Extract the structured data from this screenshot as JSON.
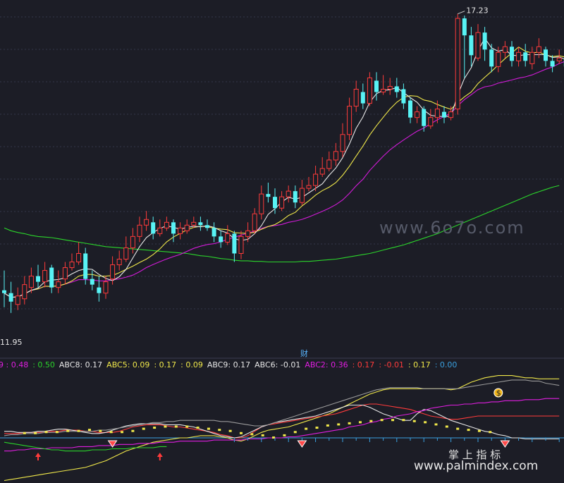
{
  "chart_data": [
    {
      "type": "candlestick",
      "panel": "main",
      "price_ylim": [
        11.4,
        17.4
      ],
      "annotations": {
        "high_label": "17.23",
        "low_label": "11.95"
      },
      "colors": {
        "up": "#ff3b3b",
        "down": "#58f3f5",
        "ma5": "#e8e8e8",
        "ma10": "#f0e84a",
        "ma20": "#d21bd8",
        "ma60": "#2bd62b"
      },
      "candles": [
        [
          12.35,
          12.3,
          12.7,
          12.05
        ],
        [
          12.3,
          12.15,
          12.5,
          11.95
        ],
        [
          12.1,
          12.25,
          12.4,
          12.0
        ],
        [
          12.2,
          12.45,
          12.6,
          12.1
        ],
        [
          12.4,
          12.6,
          12.75,
          12.3
        ],
        [
          12.6,
          12.5,
          12.8,
          12.4
        ],
        [
          12.5,
          12.7,
          12.85,
          12.4
        ],
        [
          12.75,
          12.4,
          12.8,
          12.3
        ],
        [
          12.4,
          12.5,
          12.7,
          12.3
        ],
        [
          12.55,
          12.75,
          12.85,
          12.45
        ],
        [
          12.75,
          12.85,
          13.0,
          12.7
        ],
        [
          12.85,
          13.0,
          13.2,
          12.8
        ],
        [
          13.0,
          12.55,
          13.1,
          12.45
        ],
        [
          12.55,
          12.45,
          12.7,
          12.35
        ],
        [
          12.4,
          12.3,
          12.6,
          12.15
        ],
        [
          12.3,
          12.5,
          12.6,
          12.2
        ],
        [
          12.55,
          12.8,
          12.95,
          12.45
        ],
        [
          12.8,
          12.9,
          13.05,
          12.7
        ],
        [
          12.9,
          13.1,
          13.3,
          12.85
        ],
        [
          13.1,
          13.3,
          13.45,
          13.0
        ],
        [
          13.3,
          13.5,
          13.65,
          13.2
        ],
        [
          13.5,
          13.6,
          13.75,
          13.4
        ],
        [
          13.55,
          13.35,
          13.65,
          13.25
        ],
        [
          13.35,
          13.45,
          13.6,
          13.3
        ],
        [
          13.45,
          13.55,
          13.65,
          13.4
        ],
        [
          13.55,
          13.35,
          13.6,
          13.2
        ],
        [
          13.35,
          13.45,
          13.55,
          13.25
        ],
        [
          13.4,
          13.5,
          13.6,
          13.35
        ],
        [
          13.5,
          13.55,
          13.65,
          13.45
        ],
        [
          13.55,
          13.5,
          13.65,
          13.4
        ],
        [
          13.5,
          13.45,
          13.6,
          13.4
        ],
        [
          13.45,
          13.3,
          13.55,
          13.2
        ],
        [
          13.3,
          13.2,
          13.4,
          13.1
        ],
        [
          13.2,
          13.35,
          13.5,
          13.15
        ],
        [
          13.35,
          13.0,
          13.4,
          12.85
        ],
        [
          13.0,
          13.3,
          13.4,
          12.9
        ],
        [
          13.3,
          13.4,
          13.55,
          13.2
        ],
        [
          13.4,
          13.7,
          13.8,
          13.35
        ],
        [
          13.7,
          14.05,
          14.2,
          13.6
        ],
        [
          14.05,
          14.0,
          14.25,
          13.9
        ],
        [
          14.0,
          13.8,
          14.15,
          13.7
        ],
        [
          13.8,
          14.0,
          14.1,
          13.75
        ],
        [
          14.0,
          14.1,
          14.2,
          13.9
        ],
        [
          14.1,
          13.9,
          14.2,
          13.8
        ],
        [
          13.9,
          14.15,
          14.3,
          13.85
        ],
        [
          14.15,
          14.2,
          14.35,
          14.1
        ],
        [
          14.2,
          14.4,
          14.55,
          14.1
        ],
        [
          14.4,
          14.5,
          14.7,
          14.35
        ],
        [
          14.5,
          14.65,
          14.8,
          14.45
        ],
        [
          14.65,
          14.8,
          14.95,
          14.55
        ],
        [
          14.8,
          15.1,
          15.3,
          14.7
        ],
        [
          15.1,
          15.6,
          15.75,
          15.0
        ],
        [
          15.6,
          15.9,
          16.05,
          15.5
        ],
        [
          15.85,
          15.65,
          16.0,
          15.55
        ],
        [
          15.65,
          16.1,
          16.2,
          15.6
        ],
        [
          16.05,
          15.85,
          16.2,
          15.7
        ],
        [
          15.85,
          15.9,
          16.15,
          15.8
        ],
        [
          15.9,
          15.95,
          16.1,
          15.8
        ],
        [
          15.95,
          15.85,
          16.1,
          15.75
        ],
        [
          15.9,
          15.65,
          16.0,
          15.55
        ],
        [
          15.7,
          15.4,
          15.75,
          15.3
        ],
        [
          15.4,
          15.5,
          15.6,
          15.3
        ],
        [
          15.55,
          15.25,
          15.6,
          15.15
        ],
        [
          15.25,
          15.4,
          15.55,
          15.2
        ],
        [
          15.4,
          15.55,
          15.7,
          15.3
        ],
        [
          15.5,
          15.4,
          15.6,
          15.3
        ],
        [
          15.4,
          15.5,
          15.6,
          15.35
        ],
        [
          15.55,
          17.15,
          17.23,
          15.45
        ],
        [
          17.15,
          16.85,
          17.2,
          16.1
        ],
        [
          16.85,
          16.5,
          17.0,
          16.3
        ],
        [
          16.45,
          16.9,
          17.05,
          16.4
        ],
        [
          16.9,
          16.6,
          17.0,
          16.4
        ],
        [
          16.6,
          16.3,
          16.7,
          16.2
        ],
        [
          16.3,
          16.55,
          16.65,
          16.2
        ],
        [
          16.55,
          16.65,
          16.75,
          16.45
        ],
        [
          16.65,
          16.4,
          16.75,
          16.3
        ],
        [
          16.4,
          16.55,
          16.65,
          16.3
        ],
        [
          16.55,
          16.4,
          16.7,
          16.3
        ],
        [
          16.35,
          16.55,
          16.65,
          16.25
        ],
        [
          16.55,
          16.65,
          16.8,
          16.45
        ],
        [
          16.6,
          16.4,
          16.65,
          16.3
        ],
        [
          16.4,
          16.3,
          16.5,
          16.2
        ],
        [
          16.4,
          16.45,
          16.6,
          16.35
        ],
        [
          16.45,
          16.3,
          16.5,
          16.1
        ]
      ],
      "ma60_series": [
        13.45,
        13.4,
        13.37,
        13.35,
        13.32,
        13.3,
        13.29,
        13.28,
        13.26,
        13.24,
        13.22,
        13.2,
        13.18,
        13.16,
        13.14,
        13.12,
        13.11,
        13.1,
        13.09,
        13.08,
        13.07,
        13.06,
        13.05,
        13.04,
        13.03,
        13.02,
        13.01,
        13.0,
        12.98,
        12.96,
        12.95,
        12.93,
        12.91,
        12.9,
        12.88,
        12.87,
        12.87,
        12.86,
        12.86,
        12.85,
        12.85,
        12.85,
        12.85,
        12.85,
        12.86,
        12.86,
        12.87,
        12.88,
        12.89,
        12.9,
        12.92,
        12.94,
        12.96,
        12.98,
        13.0,
        13.03,
        13.06,
        13.09,
        13.12,
        13.15,
        13.19,
        13.23,
        13.27,
        13.31,
        13.35,
        13.4,
        13.45,
        13.5,
        13.55,
        13.6,
        13.65,
        13.7,
        13.75,
        13.8,
        13.85,
        13.9,
        13.95,
        14.0,
        14.05,
        14.09,
        14.13,
        14.17,
        14.2
      ],
      "labels": {
        "cai_tag": "财"
      }
    },
    {
      "type": "line",
      "panel": "indicator",
      "legend": [
        {
          "text": "9 : 0.48",
          "color": "#e01ee0"
        },
        {
          "text": ": 0.50",
          "color": "#2ad32a"
        },
        {
          "text": "ABC8: 0.17",
          "color": "#e6e6e6"
        },
        {
          "text": "ABC5: 0.09",
          "color": "#f0e84a"
        },
        {
          "text": ": 0.17",
          "color": "#f0e84a"
        },
        {
          "text": ": 0.09",
          "color": "#f0e84a"
        },
        {
          "text": "ABC9: 0.17",
          "color": "#e6e6e6"
        },
        {
          "text": "ABC6: -0.01",
          "color": "#e6e6e6"
        },
        {
          "text": "ABC2: 0.36",
          "color": "#e01ee0"
        },
        {
          "text": ": 0.17",
          "color": "#ff3b3b"
        },
        {
          "text": ": -0.01",
          "color": "#ff3b3b"
        },
        {
          "text": ": 0.17",
          "color": "#f0e84a"
        },
        {
          "text": ": 0.00",
          "color": "#3aa0e0"
        }
      ],
      "ylim": [
        -0.4,
        0.6
      ],
      "series": [
        {
          "color": "#f0e84a",
          "values": [
            -0.39,
            -0.38,
            -0.37,
            -0.36,
            -0.35,
            -0.34,
            -0.33,
            -0.32,
            -0.31,
            -0.3,
            -0.29,
            -0.28,
            -0.27,
            -0.25,
            -0.23,
            -0.21,
            -0.18,
            -0.15,
            -0.12,
            -0.1,
            -0.08,
            -0.06,
            -0.04,
            -0.03,
            -0.02,
            -0.01,
            0.0,
            0.0,
            0.01,
            0.02,
            0.02,
            0.02,
            0.01,
            0.0,
            -0.02,
            -0.03,
            -0.01,
            0.02,
            0.05,
            0.07,
            0.08,
            0.09,
            0.1,
            0.12,
            0.14,
            0.16,
            0.18,
            0.2,
            0.22,
            0.25,
            0.28,
            0.31,
            0.34,
            0.37,
            0.4,
            0.42,
            0.44,
            0.45,
            0.45,
            0.45,
            0.45,
            0.45,
            0.45,
            0.45,
            0.45,
            0.45,
            0.44,
            0.45,
            0.48,
            0.51,
            0.53,
            0.55,
            0.56,
            0.57,
            0.57,
            0.57,
            0.56,
            0.55,
            0.55,
            0.54,
            0.54,
            0.54,
            0.54
          ]
        },
        {
          "color": "#ff3b3b",
          "values": [
            0.04,
            0.04,
            0.04,
            0.05,
            0.05,
            0.05,
            0.05,
            0.06,
            0.06,
            0.07,
            0.07,
            0.07,
            0.06,
            0.06,
            0.05,
            0.05,
            0.05,
            0.06,
            0.08,
            0.1,
            0.11,
            0.12,
            0.12,
            0.12,
            0.11,
            0.1,
            0.1,
            0.09,
            0.08,
            0.07,
            0.06,
            0.05,
            0.03,
            0.02,
            0.0,
            0.0,
            0.02,
            0.06,
            0.1,
            0.12,
            0.13,
            0.14,
            0.15,
            0.16,
            0.17,
            0.18,
            0.19,
            0.2,
            0.21,
            0.22,
            0.24,
            0.26,
            0.28,
            0.3,
            0.31,
            0.31,
            0.3,
            0.29,
            0.28,
            0.27,
            0.26,
            0.24,
            0.22,
            0.2,
            0.19,
            0.18,
            0.17,
            0.17,
            0.18,
            0.19,
            0.2,
            0.2,
            0.2,
            0.2,
            0.2,
            0.2,
            0.2,
            0.2,
            0.2,
            0.2,
            0.2,
            0.2,
            0.2
          ]
        },
        {
          "color": "#e6e6e6",
          "values": [
            0.06,
            0.06,
            0.05,
            0.05,
            0.05,
            0.06,
            0.06,
            0.07,
            0.08,
            0.08,
            0.07,
            0.06,
            0.05,
            0.04,
            0.04,
            0.05,
            0.07,
            0.09,
            0.11,
            0.12,
            0.13,
            0.13,
            0.13,
            0.13,
            0.12,
            0.12,
            0.12,
            0.11,
            0.1,
            0.08,
            0.06,
            0.04,
            0.02,
            0.01,
            0.0,
            0.01,
            0.04,
            0.07,
            0.1,
            0.12,
            0.14,
            0.15,
            0.16,
            0.17,
            0.18,
            0.19,
            0.2,
            0.22,
            0.24,
            0.26,
            0.28,
            0.3,
            0.3,
            0.3,
            0.28,
            0.25,
            0.22,
            0.2,
            0.18,
            0.16,
            0.16,
            0.22,
            0.26,
            0.25,
            0.22,
            0.19,
            0.16,
            0.14,
            0.12,
            0.1,
            0.08,
            0.06,
            0.05,
            0.03,
            0.02,
            0.0,
            0.0,
            -0.01,
            -0.01,
            -0.01,
            -0.01,
            -0.01,
            -0.01
          ]
        },
        {
          "color": "#e01ee0",
          "values": [
            -0.12,
            -0.12,
            -0.11,
            -0.11,
            -0.1,
            -0.1,
            -0.1,
            -0.09,
            -0.09,
            -0.09,
            -0.09,
            -0.08,
            -0.08,
            -0.08,
            -0.07,
            -0.07,
            -0.07,
            -0.06,
            -0.06,
            -0.06,
            -0.05,
            -0.05,
            -0.05,
            -0.04,
            -0.04,
            -0.04,
            -0.03,
            -0.03,
            -0.03,
            -0.03,
            -0.03,
            -0.02,
            -0.02,
            -0.02,
            -0.02,
            -0.02,
            -0.01,
            -0.01,
            -0.01,
            0.0,
            0.0,
            0.0,
            0.01,
            0.01,
            0.02,
            0.03,
            0.04,
            0.05,
            0.06,
            0.07,
            0.08,
            0.1,
            0.11,
            0.12,
            0.14,
            0.15,
            0.17,
            0.18,
            0.2,
            0.21,
            0.22,
            0.24,
            0.25,
            0.27,
            0.28,
            0.29,
            0.3,
            0.3,
            0.31,
            0.31,
            0.32,
            0.32,
            0.33,
            0.33,
            0.34,
            0.34,
            0.34,
            0.35,
            0.35,
            0.35,
            0.36,
            0.36,
            0.36
          ]
        },
        {
          "color": "#2ad32a",
          "values": [
            -0.04,
            -0.05,
            -0.06,
            -0.07,
            -0.08,
            -0.09,
            -0.1,
            -0.11,
            -0.11,
            -0.12,
            -0.12,
            -0.12,
            -0.12,
            -0.11,
            -0.11,
            -0.11,
            -0.1,
            -0.1,
            -0.1,
            -0.09,
            -0.09,
            -0.09,
            -0.09,
            -0.08,
            -0.08
          ]
        },
        {
          "color": "#9a9a9a",
          "values": [
            0.02,
            0.03,
            0.03,
            0.04,
            0.04,
            0.04,
            0.05,
            0.05,
            0.05,
            0.06,
            0.06,
            0.06,
            0.06,
            0.06,
            0.07,
            0.07,
            0.08,
            0.09,
            0.1,
            0.11,
            0.12,
            0.13,
            0.14,
            0.14,
            0.15,
            0.15,
            0.16,
            0.16,
            0.16,
            0.16,
            0.16,
            0.16,
            0.15,
            0.15,
            0.14,
            0.13,
            0.12,
            0.11,
            0.11,
            0.12,
            0.14,
            0.16,
            0.18,
            0.2,
            0.22,
            0.24,
            0.26,
            0.28,
            0.3,
            0.32,
            0.34,
            0.36,
            0.38,
            0.4,
            0.42,
            0.44,
            0.45,
            0.46,
            0.46,
            0.46,
            0.46,
            0.46,
            0.45,
            0.45,
            0.45,
            0.45,
            0.45,
            0.45,
            0.46,
            0.47,
            0.48,
            0.49,
            0.5,
            0.51,
            0.52,
            0.53,
            0.53,
            0.53,
            0.52,
            0.52,
            0.5,
            0.49,
            0.48
          ]
        }
      ],
      "dots_yellow": [
        0.04,
        0.04,
        0.05,
        0.05,
        0.06,
        0.06,
        0.07,
        0.06,
        0.05,
        0.05,
        0.06,
        0.08,
        0.09,
        0.1,
        0.1,
        0.1,
        0.09,
        0.08,
        0.07,
        0.06,
        0.04,
        0.03,
        0.02,
        0.0,
        0.02,
        0.05,
        0.08,
        0.09,
        0.11,
        0.12,
        0.13,
        0.14,
        0.15,
        0.16,
        0.16,
        0.16,
        0.15,
        0.14,
        0.12,
        0.1,
        0.08,
        0.07,
        0.06,
        0.05
      ],
      "markers": [
        {
          "type": "diamond",
          "index": 16
        },
        {
          "type": "diamond",
          "index": 44
        },
        {
          "type": "diamond",
          "index": 74
        },
        {
          "type": "coin",
          "index": 73,
          "label": "$"
        },
        {
          "type": "arrow-up",
          "index": 23
        },
        {
          "type": "arrow-up",
          "index": 5
        }
      ]
    }
  ],
  "watermarks": {
    "site1": "www.6o7o.com",
    "brand_cn": "掌 上 指 标",
    "site2": "www.palmindex.com"
  }
}
